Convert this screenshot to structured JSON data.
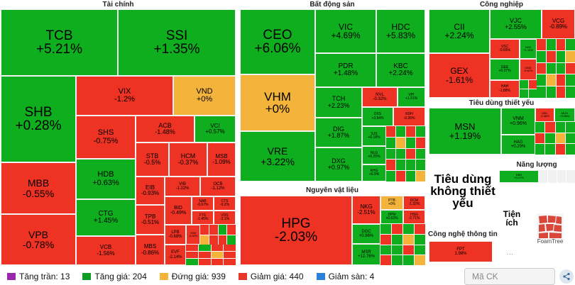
{
  "sections": {
    "tai_chinh": "Tài chính",
    "bat_dong_san": "Bất động sản",
    "cong_nghiep": "Công nghiệp",
    "tieu_dung_thiet_yeu": "Tiêu dùng thiết yếu",
    "nang_luong": "Năng lượng",
    "nguyen_vat_lieu": "Nguyên vật liệu",
    "cong_nghe_thong_tin": "Công nghệ thông tin"
  },
  "labels": {
    "tieu_dung_khong_thiet_yeu": "Tiêu dùng không thiết yếu",
    "tien_ich": "Tiện ích",
    "ellipsis": "..."
  },
  "tiles": {
    "TCB": {
      "sym": "TCB",
      "chg": "+5.21%"
    },
    "SSI": {
      "sym": "SSI",
      "chg": "+1.35%"
    },
    "SHB": {
      "sym": "SHB",
      "chg": "+0.28%"
    },
    "VIX": {
      "sym": "VIX",
      "chg": "-1.2%"
    },
    "VND": {
      "sym": "VND",
      "chg": "+0%"
    },
    "SHS": {
      "sym": "SHS",
      "chg": "-0.75%"
    },
    "ACB": {
      "sym": "ACB",
      "chg": "-1.48%"
    },
    "VCI": {
      "sym": "VCI",
      "chg": "+0.57%"
    },
    "MBB": {
      "sym": "MBB",
      "chg": "-0.55%"
    },
    "HDB": {
      "sym": "HDB",
      "chg": "+0.63%"
    },
    "STB": {
      "sym": "STB",
      "chg": "-0.5%"
    },
    "HCM": {
      "sym": "HCM",
      "chg": "-0.37%"
    },
    "MSB": {
      "sym": "MSB",
      "chg": "-1.09%"
    },
    "EIB": {
      "sym": "EIB",
      "chg": "-0.93%"
    },
    "VIB": {
      "sym": "VIB",
      "chg": "-1.22%"
    },
    "OCB": {
      "sym": "OCB",
      "chg": "-1.12%"
    },
    "VPB": {
      "sym": "VPB",
      "chg": "-0.78%"
    },
    "CTG": {
      "sym": "CTG",
      "chg": "+1.45%"
    },
    "BID": {
      "sym": "BID",
      "chg": "-0.49%"
    },
    "NAB": {
      "sym": "NAB",
      "chg": "-0.67%"
    },
    "CTS": {
      "sym": "CTS",
      "chg": "-0.2%"
    },
    "TPB": {
      "sym": "TPB",
      "chg": "-0.51%"
    },
    "FTS": {
      "sym": "FTS",
      "chg": "-1.45%"
    },
    "VDS": {
      "sym": "VDS",
      "chg": "-2.1%"
    },
    "VCB": {
      "sym": "VCB",
      "chg": "-1.56%"
    },
    "MBS": {
      "sym": "MBS",
      "chg": "-0.86%"
    },
    "LPB": {
      "sym": "LPB",
      "chg": "-0.68%"
    },
    "SSB": {
      "sym": "SSB",
      "chg": "-0.92%"
    },
    "EVF": {
      "sym": "EVF",
      "chg": "-2.14%"
    },
    "CEO": {
      "sym": "CEO",
      "chg": "+6.06%"
    },
    "VIC": {
      "sym": "VIC",
      "chg": "+4.69%"
    },
    "HDC": {
      "sym": "HDC",
      "chg": "+5.83%"
    },
    "PDR": {
      "sym": "PDR",
      "chg": "+1.48%"
    },
    "KBC": {
      "sym": "KBC",
      "chg": "+2.24%"
    },
    "VHM": {
      "sym": "VHM",
      "chg": "+0%"
    },
    "TCH": {
      "sym": "TCH",
      "chg": "+2.23%"
    },
    "NVL": {
      "sym": "NVL",
      "chg": "-0.32%"
    },
    "VPI": {
      "sym": "VPI",
      "chg": "+1.21%"
    },
    "DIG": {
      "sym": "DIG",
      "chg": "+1.87%"
    },
    "DXS": {
      "sym": "DXS",
      "chg": "+3.94%"
    },
    "KDH": {
      "sym": "KDH",
      "chg": "-0.35%"
    },
    "VRE": {
      "sym": "VRE",
      "chg": "+3.22%"
    },
    "DXG": {
      "sym": "DXG",
      "chg": "+0.97%"
    },
    "SJS": {
      "sym": "SJS",
      "chg": "+0.18%"
    },
    "NLG": {
      "sym": "NLG",
      "chg": "+0.25%"
    },
    "KHG": {
      "sym": "KHG",
      "chg": "+6.9%"
    },
    "CII": {
      "sym": "CII",
      "chg": "+2.24%"
    },
    "VJC": {
      "sym": "VJC",
      "chg": "+2.55%"
    },
    "VCG": {
      "sym": "VCG",
      "chg": "-0.89%"
    },
    "VSC": {
      "sym": "VSC",
      "chg": "-0.55%"
    },
    "HHV": {
      "sym": "HHV",
      "chg": "+1.15%"
    },
    "GEX": {
      "sym": "GEX",
      "chg": "-1.61%"
    },
    "GEE": {
      "sym": "GEE",
      "chg": "+0.37%"
    },
    "GMD": {
      "sym": "GMD",
      "chg": "-0.62%"
    },
    "HAH": {
      "sym": "HAH",
      "chg": "-1.88%"
    },
    "MSN": {
      "sym": "MSN",
      "chg": "+1.19%"
    },
    "VNM": {
      "sym": "VNM",
      "chg": "+0.96%"
    },
    "DBC": {
      "sym": "DBC",
      "chg": "-0.48%"
    },
    "HAG": {
      "sym": "HAG",
      "chg": "+0.29%"
    },
    "MCH": {
      "sym": "MCH",
      "chg": "+0.86%"
    },
    "DBS": {
      "sym": "DBS",
      "chg": "+0.17%"
    },
    "HPG": {
      "sym": "HPG",
      "chg": "-2.03%"
    },
    "NKG": {
      "sym": "NKG",
      "chg": "-2.51%"
    },
    "PTB": {
      "sym": "PTB",
      "chg": "+0%"
    },
    "DCM": {
      "sym": "DCM",
      "chg": "-1.32%"
    },
    "DPM": {
      "sym": "DPM",
      "chg": "+0.63%"
    },
    "HSG": {
      "sym": "HSG",
      "chg": "-2.71%"
    },
    "DGC": {
      "sym": "DGC",
      "chg": "+0.96%"
    },
    "MSR": {
      "sym": "MSR",
      "chg": "+12.76%"
    },
    "FPT": {
      "sym": "FPT",
      "chg": "1.98%"
    }
  },
  "legend": [
    {
      "label": "Tăng trần: 13",
      "color": "#9b27b0"
    },
    {
      "label": "Tăng giá: 204",
      "color": "#0e9d24"
    },
    {
      "label": "Đứng giá: 939",
      "color": "#f4b33b"
    },
    {
      "label": "Giảm giá: 440",
      "color": "#e5382a"
    },
    {
      "label": "Giảm sàn: 4",
      "color": "#2a83d6"
    }
  ],
  "search": {
    "placeholder": "Mã CK"
  },
  "brand": {
    "name": "FoamTree"
  },
  "colors": {
    "up": "#0fae1e",
    "down": "#ee3223",
    "flat": "#f4b33b"
  }
}
